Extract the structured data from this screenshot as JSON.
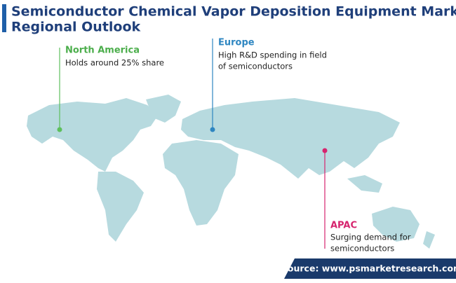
{
  "header": {
    "title_lines": [
      "Semiconductor Chemical Vapor Deposition Equipment Market",
      "Regional Outlook"
    ]
  },
  "callouts": [
    {
      "label": "North America",
      "lines": [
        "Holds around 25% share"
      ]
    },
    {
      "label": "Europe",
      "lines": [
        "High R&D spending in field",
        "of semiconductors"
      ]
    },
    {
      "label": "APAC",
      "lines": [
        "Surging demand for",
        "semiconductors"
      ]
    }
  ],
  "source": "Source: www.psmarketresearch.com"
}
